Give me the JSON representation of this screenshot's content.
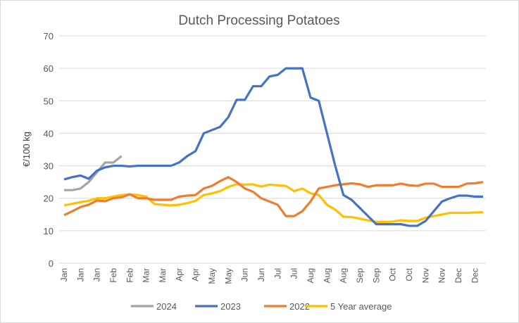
{
  "chart_data": {
    "type": "line",
    "title": "Dutch Processing Potatoes",
    "xlabel": "",
    "ylabel": "€/100 kg",
    "ylim": [
      0,
      70
    ],
    "yticks": [
      0,
      10,
      20,
      30,
      40,
      50,
      60,
      70
    ],
    "grid": true,
    "legend_position": "bottom",
    "x_tick_labels": [
      "Jan",
      "Jan",
      "Jan",
      "Feb",
      "Feb",
      "Mar",
      "Mar",
      "Apr",
      "Apr",
      "May",
      "May",
      "Jun",
      "Jun",
      "Jul",
      "Jul",
      "Aug",
      "Aug",
      "Aug",
      "Sep",
      "Sep",
      "Oct",
      "Oct",
      "Nov",
      "Nov",
      "Dec",
      "Dec"
    ],
    "series": [
      {
        "name": "2024",
        "color": "#a5a5a5",
        "values": [
          22.5,
          22.5,
          23,
          25,
          28,
          31,
          31,
          33
        ]
      },
      {
        "name": "2023",
        "color": "#4472c4",
        "values": [
          25.8,
          26.5,
          27,
          26,
          28.5,
          29.5,
          30,
          30,
          29.8,
          30,
          30,
          30,
          30,
          30,
          31,
          33,
          34.5,
          40,
          41,
          42,
          45,
          50.3,
          50.3,
          54.5,
          54.5,
          57.5,
          58,
          60,
          60,
          60,
          51,
          50,
          40,
          30,
          21,
          19.5,
          17,
          14.5,
          12,
          12,
          12,
          12,
          11.5,
          11.5,
          13,
          16,
          19,
          20,
          20.8,
          20.8,
          20.5,
          20.5
        ]
      },
      {
        "name": "2022",
        "color": "#ed7d31",
        "values": [
          14.8,
          16,
          17.3,
          18,
          19.3,
          19.1,
          20,
          20.3,
          21.2,
          20,
          20,
          19.5,
          19.5,
          19.5,
          20.5,
          20.8,
          21,
          23,
          23.8,
          25.3,
          26.5,
          25,
          23,
          22,
          20,
          19,
          18,
          14.5,
          14.5,
          16,
          19,
          23,
          23.5,
          24,
          24.3,
          24.6,
          24.3,
          23.5,
          24,
          24,
          24,
          24.5,
          24,
          23.8,
          24.5,
          24.5,
          23.5,
          23.5,
          23.5,
          24.5,
          24.6,
          25
        ]
      },
      {
        "name": "5 Year average",
        "color": "#ffc000",
        "values": [
          17.8,
          18.3,
          18.8,
          19.2,
          20,
          20,
          20.5,
          21,
          21.2,
          21,
          20.5,
          18.2,
          18,
          17.8,
          18,
          18.5,
          19.2,
          21,
          21.5,
          22.2,
          23.5,
          24.3,
          24.2,
          24.3,
          23.6,
          24.2,
          24,
          23.8,
          22.2,
          23,
          21.5,
          21,
          18,
          16.5,
          14.3,
          14.2,
          13.7,
          13.2,
          12.7,
          12.7,
          12.8,
          13.2,
          13,
          13,
          14,
          14.5,
          15,
          15.5,
          15.5,
          15.5,
          15.6,
          15.7
        ]
      }
    ]
  }
}
